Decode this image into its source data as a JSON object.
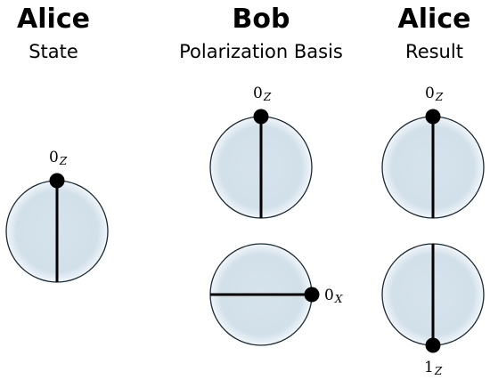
{
  "columns": [
    {
      "title": "Alice",
      "subtitle": "State"
    },
    {
      "title": "Bob",
      "subtitle": "Polarization Basis"
    },
    {
      "title": "Alice",
      "subtitle": "Result"
    }
  ],
  "states": {
    "alice_state": {
      "digit": "0",
      "basis": "Z"
    },
    "bob_z": {
      "digit": "0",
      "basis": "Z"
    },
    "bob_x": {
      "digit": "0",
      "basis": "X"
    },
    "result_top": {
      "digit": "0",
      "basis": "Z"
    },
    "result_bottom": {
      "digit": "1",
      "basis": "Z"
    }
  },
  "colors": {
    "sphere_fill": "#d6e3ec",
    "sphere_edge": "#f4f8fb",
    "outline": "#1a2a36",
    "axis": "#000000",
    "dot": "#000000"
  }
}
